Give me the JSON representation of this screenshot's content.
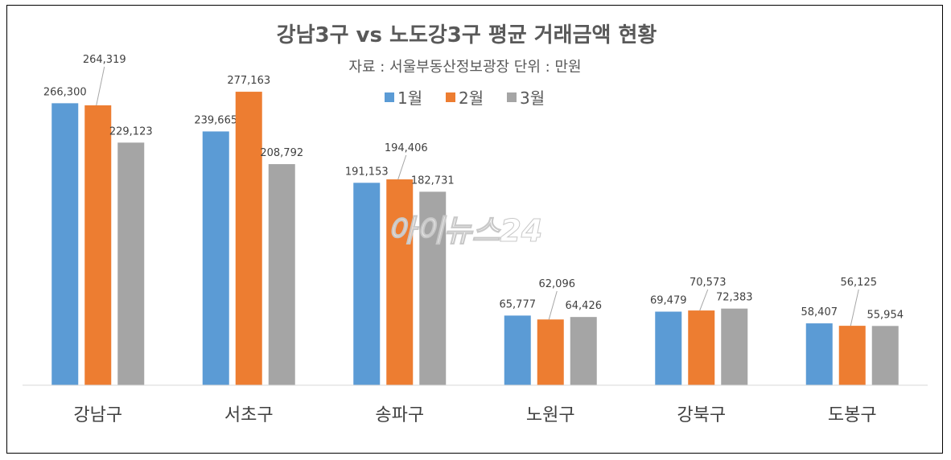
{
  "chart_data": {
    "type": "bar",
    "title": "강남3구 vs 노도강3구 평균 거래금액 현황",
    "subtitle": "자료 : 서울부동산정보광장  단위 : 만원",
    "categories": [
      "강남구",
      "서초구",
      "송파구",
      "노원구",
      "강북구",
      "도봉구"
    ],
    "series": [
      {
        "name": "1월",
        "color": "#5B9BD5",
        "values": [
          266300,
          239665,
          191153,
          65777,
          69479,
          58407
        ],
        "labels": [
          "266,300",
          "239,665",
          "191,153",
          "65,777",
          "69,479",
          "58,407"
        ]
      },
      {
        "name": "2월",
        "color": "#ED7D31",
        "values": [
          264319,
          277163,
          194406,
          62096,
          70573,
          56125
        ],
        "labels": [
          "264,319",
          "277,163",
          "194,406",
          "62,096",
          "70,573",
          "56,125"
        ]
      },
      {
        "name": "3월",
        "color": "#A5A5A5",
        "values": [
          229123,
          208792,
          182731,
          64426,
          72383,
          55954
        ],
        "labels": [
          "229,123",
          "208,792",
          "182,731",
          "64,426",
          "72,383",
          "55,954"
        ]
      }
    ],
    "ylim": [
      0,
      300000
    ],
    "grid": false,
    "legend": "top",
    "watermark": "아이뉴스24"
  }
}
